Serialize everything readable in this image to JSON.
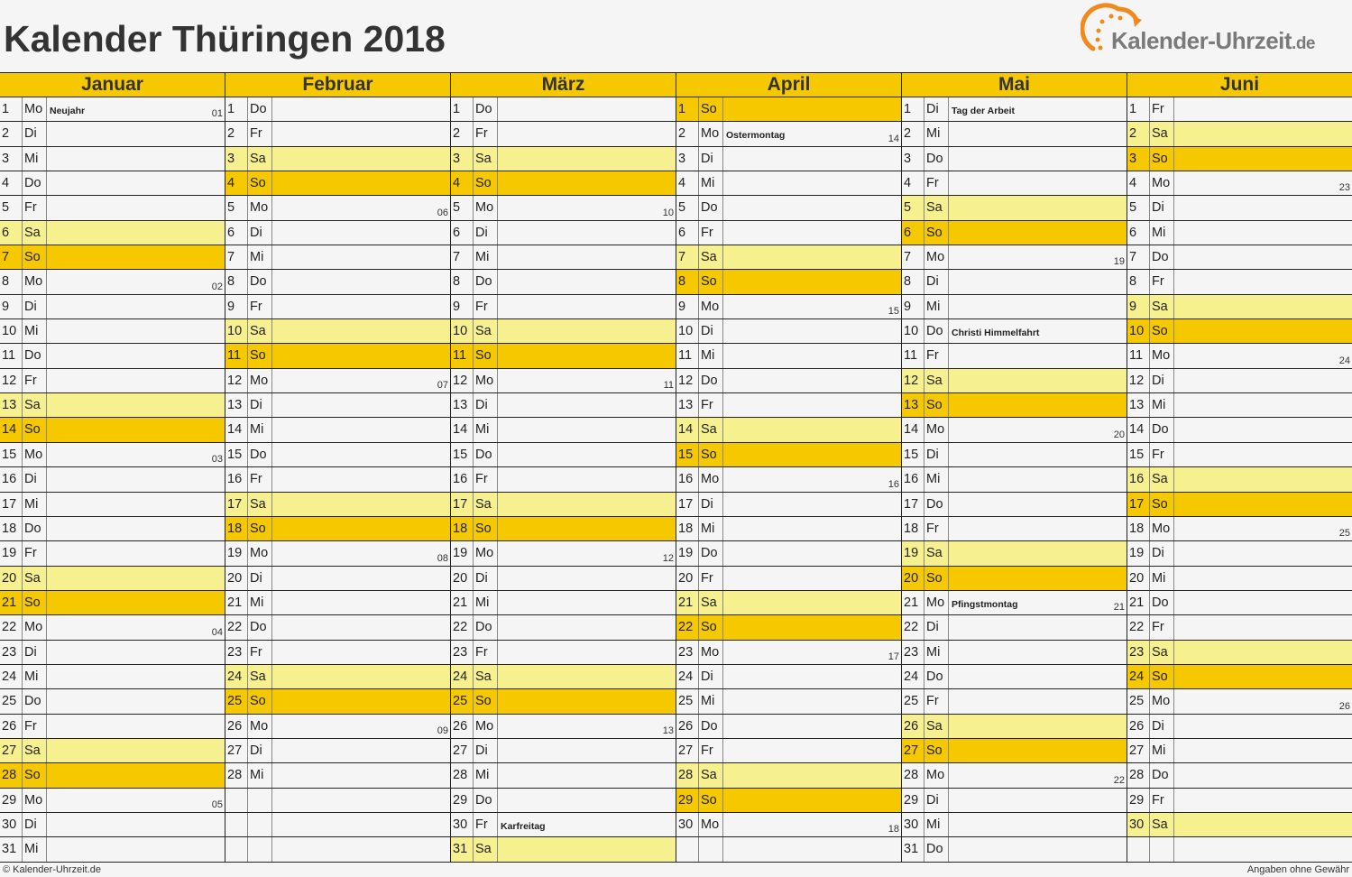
{
  "title": "Kalender Thüringen 2018",
  "logo": {
    "text": "Kalender-Uhrzeit",
    "tld": ".de",
    "accent": "#f08a1c"
  },
  "colors": {
    "header": "#f5c800",
    "saturday": "#f7f08f",
    "sunday": "#f5c800"
  },
  "footer": {
    "left": "© Kalender-Uhrzeit.de",
    "right": "Angaben ohne Gewähr"
  },
  "months": [
    {
      "name": "Januar",
      "rows": [
        [
          "1",
          "Mo",
          "Neujahr",
          "01"
        ],
        [
          "2",
          "Di"
        ],
        [
          "3",
          "Mi"
        ],
        [
          "4",
          "Do"
        ],
        [
          "5",
          "Fr"
        ],
        [
          "6",
          "Sa"
        ],
        [
          "7",
          "So"
        ],
        [
          "8",
          "Mo",
          "",
          "02"
        ],
        [
          "9",
          "Di"
        ],
        [
          "10",
          "Mi"
        ],
        [
          "11",
          "Do"
        ],
        [
          "12",
          "Fr"
        ],
        [
          "13",
          "Sa"
        ],
        [
          "14",
          "So"
        ],
        [
          "15",
          "Mo",
          "",
          "03"
        ],
        [
          "16",
          "Di"
        ],
        [
          "17",
          "Mi"
        ],
        [
          "18",
          "Do"
        ],
        [
          "19",
          "Fr"
        ],
        [
          "20",
          "Sa"
        ],
        [
          "21",
          "So"
        ],
        [
          "22",
          "Mo",
          "",
          "04"
        ],
        [
          "23",
          "Di"
        ],
        [
          "24",
          "Mi"
        ],
        [
          "25",
          "Do"
        ],
        [
          "26",
          "Fr"
        ],
        [
          "27",
          "Sa"
        ],
        [
          "28",
          "So"
        ],
        [
          "29",
          "Mo",
          "",
          "05"
        ],
        [
          "30",
          "Di"
        ],
        [
          "31",
          "Mi"
        ]
      ]
    },
    {
      "name": "Februar",
      "rows": [
        [
          "1",
          "Do"
        ],
        [
          "2",
          "Fr"
        ],
        [
          "3",
          "Sa"
        ],
        [
          "4",
          "So"
        ],
        [
          "5",
          "Mo",
          "",
          "06"
        ],
        [
          "6",
          "Di"
        ],
        [
          "7",
          "Mi"
        ],
        [
          "8",
          "Do"
        ],
        [
          "9",
          "Fr"
        ],
        [
          "10",
          "Sa"
        ],
        [
          "11",
          "So"
        ],
        [
          "12",
          "Mo",
          "",
          "07"
        ],
        [
          "13",
          "Di"
        ],
        [
          "14",
          "Mi"
        ],
        [
          "15",
          "Do"
        ],
        [
          "16",
          "Fr"
        ],
        [
          "17",
          "Sa"
        ],
        [
          "18",
          "So"
        ],
        [
          "19",
          "Mo",
          "",
          "08"
        ],
        [
          "20",
          "Di"
        ],
        [
          "21",
          "Mi"
        ],
        [
          "22",
          "Do"
        ],
        [
          "23",
          "Fr"
        ],
        [
          "24",
          "Sa"
        ],
        [
          "25",
          "So"
        ],
        [
          "26",
          "Mo",
          "",
          "09"
        ],
        [
          "27",
          "Di"
        ],
        [
          "28",
          "Mi"
        ]
      ]
    },
    {
      "name": "März",
      "rows": [
        [
          "1",
          "Do"
        ],
        [
          "2",
          "Fr"
        ],
        [
          "3",
          "Sa"
        ],
        [
          "4",
          "So"
        ],
        [
          "5",
          "Mo",
          "",
          "10"
        ],
        [
          "6",
          "Di"
        ],
        [
          "7",
          "Mi"
        ],
        [
          "8",
          "Do"
        ],
        [
          "9",
          "Fr"
        ],
        [
          "10",
          "Sa"
        ],
        [
          "11",
          "So"
        ],
        [
          "12",
          "Mo",
          "",
          "11"
        ],
        [
          "13",
          "Di"
        ],
        [
          "14",
          "Mi"
        ],
        [
          "15",
          "Do"
        ],
        [
          "16",
          "Fr"
        ],
        [
          "17",
          "Sa"
        ],
        [
          "18",
          "So"
        ],
        [
          "19",
          "Mo",
          "",
          "12"
        ],
        [
          "20",
          "Di"
        ],
        [
          "21",
          "Mi"
        ],
        [
          "22",
          "Do"
        ],
        [
          "23",
          "Fr"
        ],
        [
          "24",
          "Sa"
        ],
        [
          "25",
          "So"
        ],
        [
          "26",
          "Mo",
          "",
          "13"
        ],
        [
          "27",
          "Di"
        ],
        [
          "28",
          "Mi"
        ],
        [
          "29",
          "Do"
        ],
        [
          "30",
          "Fr",
          "Karfreitag"
        ],
        [
          "31",
          "Sa"
        ]
      ]
    },
    {
      "name": "April",
      "rows": [
        [
          "1",
          "So"
        ],
        [
          "2",
          "Mo",
          "Ostermontag",
          "14"
        ],
        [
          "3",
          "Di"
        ],
        [
          "4",
          "Mi"
        ],
        [
          "5",
          "Do"
        ],
        [
          "6",
          "Fr"
        ],
        [
          "7",
          "Sa"
        ],
        [
          "8",
          "So"
        ],
        [
          "9",
          "Mo",
          "",
          "15"
        ],
        [
          "10",
          "Di"
        ],
        [
          "11",
          "Mi"
        ],
        [
          "12",
          "Do"
        ],
        [
          "13",
          "Fr"
        ],
        [
          "14",
          "Sa"
        ],
        [
          "15",
          "So"
        ],
        [
          "16",
          "Mo",
          "",
          "16"
        ],
        [
          "17",
          "Di"
        ],
        [
          "18",
          "Mi"
        ],
        [
          "19",
          "Do"
        ],
        [
          "20",
          "Fr"
        ],
        [
          "21",
          "Sa"
        ],
        [
          "22",
          "So"
        ],
        [
          "23",
          "Mo",
          "",
          "17"
        ],
        [
          "24",
          "Di"
        ],
        [
          "25",
          "Mi"
        ],
        [
          "26",
          "Do"
        ],
        [
          "27",
          "Fr"
        ],
        [
          "28",
          "Sa"
        ],
        [
          "29",
          "So"
        ],
        [
          "30",
          "Mo",
          "",
          "18"
        ]
      ]
    },
    {
      "name": "Mai",
      "rows": [
        [
          "1",
          "Di",
          "Tag der Arbeit"
        ],
        [
          "2",
          "Mi"
        ],
        [
          "3",
          "Do"
        ],
        [
          "4",
          "Fr"
        ],
        [
          "5",
          "Sa"
        ],
        [
          "6",
          "So"
        ],
        [
          "7",
          "Mo",
          "",
          "19"
        ],
        [
          "8",
          "Di"
        ],
        [
          "9",
          "Mi"
        ],
        [
          "10",
          "Do",
          "Christi Himmelfahrt"
        ],
        [
          "11",
          "Fr"
        ],
        [
          "12",
          "Sa"
        ],
        [
          "13",
          "So"
        ],
        [
          "14",
          "Mo",
          "",
          "20"
        ],
        [
          "15",
          "Di"
        ],
        [
          "16",
          "Mi"
        ],
        [
          "17",
          "Do"
        ],
        [
          "18",
          "Fr"
        ],
        [
          "19",
          "Sa"
        ],
        [
          "20",
          "So"
        ],
        [
          "21",
          "Mo",
          "Pfingstmontag",
          "21"
        ],
        [
          "22",
          "Di"
        ],
        [
          "23",
          "Mi"
        ],
        [
          "24",
          "Do"
        ],
        [
          "25",
          "Fr"
        ],
        [
          "26",
          "Sa"
        ],
        [
          "27",
          "So"
        ],
        [
          "28",
          "Mo",
          "",
          "22"
        ],
        [
          "29",
          "Di"
        ],
        [
          "30",
          "Mi"
        ],
        [
          "31",
          "Do"
        ]
      ]
    },
    {
      "name": "Juni",
      "rows": [
        [
          "1",
          "Fr"
        ],
        [
          "2",
          "Sa"
        ],
        [
          "3",
          "So"
        ],
        [
          "4",
          "Mo",
          "",
          "23"
        ],
        [
          "5",
          "Di"
        ],
        [
          "6",
          "Mi"
        ],
        [
          "7",
          "Do"
        ],
        [
          "8",
          "Fr"
        ],
        [
          "9",
          "Sa"
        ],
        [
          "10",
          "So"
        ],
        [
          "11",
          "Mo",
          "",
          "24"
        ],
        [
          "12",
          "Di"
        ],
        [
          "13",
          "Mi"
        ],
        [
          "14",
          "Do"
        ],
        [
          "15",
          "Fr"
        ],
        [
          "16",
          "Sa"
        ],
        [
          "17",
          "So"
        ],
        [
          "18",
          "Mo",
          "",
          "25"
        ],
        [
          "19",
          "Di"
        ],
        [
          "20",
          "Mi"
        ],
        [
          "21",
          "Do"
        ],
        [
          "22",
          "Fr"
        ],
        [
          "23",
          "Sa"
        ],
        [
          "24",
          "So"
        ],
        [
          "25",
          "Mo",
          "",
          "26"
        ],
        [
          "26",
          "Di"
        ],
        [
          "27",
          "Mi"
        ],
        [
          "28",
          "Do"
        ],
        [
          "29",
          "Fr"
        ],
        [
          "30",
          "Sa"
        ]
      ]
    }
  ]
}
